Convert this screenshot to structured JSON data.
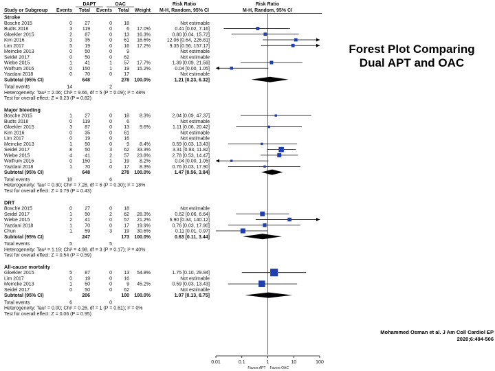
{
  "side_title": [
    "Forest Plot Comparing",
    "Dual APT and OAC"
  ],
  "citation": [
    "Mohammed Osman et al. J Am Coll Cardiol EP",
    "2020;6:494-506"
  ],
  "headers": {
    "group1": "DAPT",
    "group2": "OAC",
    "rr_col": "Risk Ratio",
    "rr_plot": "Risk Ratio",
    "study": "Study or Subgroup",
    "events": "Events",
    "total": "Total",
    "weight": "Weight",
    "method": "M-H, Random, 95% CI",
    "method_plot": "M-H, Random, 95% CI"
  },
  "footer": {
    "favors_left": "Favors APT",
    "favors_right": "Favors OAC"
  },
  "colors": {
    "square": "#1f3fae",
    "line": "#000000",
    "accent_text": "#000000"
  },
  "chart_data": {
    "type": "forest",
    "x_scale": "log",
    "xlim": [
      0.01,
      100
    ],
    "x_ticks": [
      "0.01",
      "0.1",
      "1",
      "10",
      "100"
    ],
    "null_line": 1,
    "subgroups": [
      {
        "title": "Stroke",
        "studies": [
          {
            "study": "Bosche 2015",
            "e1": "0",
            "t1": "27",
            "e2": "0",
            "t2": "18",
            "weight": "",
            "ci_text": "Not estimable",
            "rr": null,
            "lo": null,
            "hi": null
          },
          {
            "study": "Budts 2016",
            "e1": "3",
            "t1": "119",
            "e2": "0",
            "t2": "6",
            "weight": "17.0%",
            "ci_text": "0.41 [0.02, 7.16]",
            "rr": 0.41,
            "lo": 0.02,
            "hi": 7.16
          },
          {
            "study": "Gloekler 2015",
            "e1": "2",
            "t1": "87",
            "e2": "0",
            "t2": "13",
            "weight": "16.3%",
            "ci_text": "0.80 [0.04, 15.72]",
            "rr": 0.8,
            "lo": 0.04,
            "hi": 15.72
          },
          {
            "study": "Kim 2016",
            "e1": "3",
            "t1": "35",
            "e2": "0",
            "t2": "61",
            "weight": "16.6%",
            "ci_text": "12.06 [0.64, 226.81]",
            "rr": 12.06,
            "lo": 0.64,
            "hi": 226.81
          },
          {
            "study": "Lim 2017",
            "e1": "5",
            "t1": "19",
            "e2": "0",
            "t2": "16",
            "weight": "17.2%",
            "ci_text": "9.35 [0.56, 157.17]",
            "rr": 9.35,
            "lo": 0.56,
            "hi": 157.17
          },
          {
            "study": "Meincke 2013",
            "e1": "0",
            "t1": "50",
            "e2": "0",
            "t2": "9",
            "weight": "",
            "ci_text": "Not estimable",
            "rr": null,
            "lo": null,
            "hi": null
          },
          {
            "study": "Seidel 2017",
            "e1": "0",
            "t1": "50",
            "e2": "0",
            "t2": "62",
            "weight": "",
            "ci_text": "Not estimable",
            "rr": null,
            "lo": null,
            "hi": null
          },
          {
            "study": "Wiebe 2015",
            "e1": "1",
            "t1": "41",
            "e2": "1",
            "t2": "57",
            "weight": "17.7%",
            "ci_text": "1.39 [0.09, 21.59]",
            "rr": 1.39,
            "lo": 0.09,
            "hi": 21.59
          },
          {
            "study": "Wolfrum 2016",
            "e1": "0",
            "t1": "150",
            "e2": "1",
            "t2": "19",
            "weight": "15.2%",
            "ci_text": "0.04 [0.00, 1.05]",
            "rr": 0.04,
            "lo": 0.002,
            "hi": 1.05
          },
          {
            "study": "Yazdani 2018",
            "e1": "0",
            "t1": "70",
            "e2": "0",
            "t2": "17",
            "weight": "",
            "ci_text": "Not estimable",
            "rr": null,
            "lo": null,
            "hi": null
          }
        ],
        "subtotal": {
          "label": "Subtotal (95% CI)",
          "t1": "648",
          "t2": "278",
          "weight": "100.0%",
          "ci_text": "1.21 [0.23, 6.32]",
          "rr": 1.21,
          "lo": 0.23,
          "hi": 6.32
        },
        "total_events": {
          "label": "Total events",
          "e1": "14",
          "e2": "2"
        },
        "heterogeneity": "Heterogeneity: Tau² = 2.06; Chi² = 9.66, df = 5 (P = 0.09); I² = 48%",
        "overall": "Test for overall effect: Z = 0.23 (P = 0.82)"
      },
      {
        "title": "Major bleeding",
        "studies": [
          {
            "study": "Bosche 2015",
            "e1": "1",
            "t1": "27",
            "e2": "0",
            "t2": "18",
            "weight": "8.3%",
            "ci_text": "2.04 [0.09, 47.37]",
            "rr": 2.04,
            "lo": 0.09,
            "hi": 47.37
          },
          {
            "study": "Budts 2016",
            "e1": "0",
            "t1": "119",
            "e2": "0",
            "t2": "6",
            "weight": "",
            "ci_text": "Not estimable",
            "rr": null,
            "lo": null,
            "hi": null
          },
          {
            "study": "Gloekler 2015",
            "e1": "3",
            "t1": "87",
            "e2": "0",
            "t2": "13",
            "weight": "9.6%",
            "ci_text": "1.11 [0.06, 20.42]",
            "rr": 1.11,
            "lo": 0.06,
            "hi": 20.42
          },
          {
            "study": "Kim 2016",
            "e1": "0",
            "t1": "35",
            "e2": "0",
            "t2": "61",
            "weight": "",
            "ci_text": "Not estimable",
            "rr": null,
            "lo": null,
            "hi": null
          },
          {
            "study": "Lim 2017",
            "e1": "0",
            "t1": "19",
            "e2": "0",
            "t2": "16",
            "weight": "",
            "ci_text": "Not estimable",
            "rr": null,
            "lo": null,
            "hi": null
          },
          {
            "study": "Meincke 2013",
            "e1": "1",
            "t1": "50",
            "e2": "0",
            "t2": "9",
            "weight": "8.4%",
            "ci_text": "0.59 [0.03, 13.43]",
            "rr": 0.59,
            "lo": 0.03,
            "hi": 13.43
          },
          {
            "study": "Seidel 2017",
            "e1": "8",
            "t1": "50",
            "e2": "3",
            "t2": "62",
            "weight": "33.3%",
            "ci_text": "3.31 [0.93, 11.82]",
            "rr": 3.31,
            "lo": 0.93,
            "hi": 11.82
          },
          {
            "study": "Wiebe 2015",
            "e1": "4",
            "t1": "41",
            "e2": "2",
            "t2": "57",
            "weight": "23.8%",
            "ci_text": "2.78 [0.53, 14.47]",
            "rr": 2.78,
            "lo": 0.53,
            "hi": 14.47
          },
          {
            "study": "Wolfrum 2016",
            "e1": "0",
            "t1": "150",
            "e2": "1",
            "t2": "19",
            "weight": "8.2%",
            "ci_text": "0.04 [0.00, 1.05]",
            "rr": 0.04,
            "lo": 0.002,
            "hi": 1.05
          },
          {
            "study": "Yazdani 2018",
            "e1": "1",
            "t1": "70",
            "e2": "0",
            "t2": "17",
            "weight": "8.3%",
            "ci_text": "0.76 [0.03, 17.90]",
            "rr": 0.76,
            "lo": 0.03,
            "hi": 17.9
          }
        ],
        "subtotal": {
          "label": "Subtotal (95% CI)",
          "t1": "648",
          "t2": "278",
          "weight": "100.0%",
          "ci_text": "1.47 [0.56, 3.84]",
          "rr": 1.47,
          "lo": 0.56,
          "hi": 3.84
        },
        "total_events": {
          "label": "Total events",
          "e1": "18",
          "e2": "6"
        },
        "heterogeneity": "Heterogeneity: Tau² = 0.30; Chi² = 7.28, df = 6 (P = 0.30); I² = 18%",
        "overall": "Test for overall effect: Z = 0.79 (P = 0.43)"
      },
      {
        "title": "DRT",
        "studies": [
          {
            "study": "Bosche 2015",
            "e1": "0",
            "t1": "27",
            "e2": "0",
            "t2": "18",
            "weight": "",
            "ci_text": "Not estimable",
            "rr": null,
            "lo": null,
            "hi": null
          },
          {
            "study": "Seidel 2017",
            "e1": "1",
            "t1": "50",
            "e2": "2",
            "t2": "62",
            "weight": "28.3%",
            "ci_text": "0.62 [0.06, 6.64]",
            "rr": 0.62,
            "lo": 0.06,
            "hi": 6.64
          },
          {
            "study": "Wiebe 2015",
            "e1": "2",
            "t1": "41",
            "e2": "0",
            "t2": "57",
            "weight": "21.2%",
            "ci_text": "6.90 [0.34, 140.12]",
            "rr": 6.9,
            "lo": 0.34,
            "hi": 140.12
          },
          {
            "study": "Yazdani 2018",
            "e1": "1",
            "t1": "70",
            "e2": "0",
            "t2": "17",
            "weight": "19.9%",
            "ci_text": "0.76 [0.03, 17.90]",
            "rr": 0.76,
            "lo": 0.03,
            "hi": 17.9
          },
          {
            "study": "Chun",
            "e1": "1",
            "t1": "59",
            "e2": "3",
            "t2": "19",
            "weight": "30.6%",
            "ci_text": "0.11 [0.01, 0.97]",
            "rr": 0.11,
            "lo": 0.01,
            "hi": 0.97
          }
        ],
        "subtotal": {
          "label": "Subtotal (95% CI)",
          "t1": "247",
          "t2": "173",
          "weight": "100.0%",
          "ci_text": "0.63 [0.11, 3.44]",
          "rr": 0.63,
          "lo": 0.11,
          "hi": 3.44
        },
        "total_events": {
          "label": "Total events",
          "e1": "5",
          "e2": "5"
        },
        "heterogeneity": "Heterogeneity: Tau² = 1.19; Chi² = 4.98, df = 3 (P = 0.17); I² = 40%",
        "overall": "Test for overall effect: Z = 0.54 (P = 0.59)"
      },
      {
        "title": "All-cause mortality",
        "studies": [
          {
            "study": "Gloekler 2015",
            "e1": "5",
            "t1": "87",
            "e2": "0",
            "t2": "13",
            "weight": "54.8%",
            "ci_text": "1.75 [0.10, 29.94]",
            "rr": 1.75,
            "lo": 0.1,
            "hi": 29.94
          },
          {
            "study": "Lim 2017",
            "e1": "0",
            "t1": "19",
            "e2": "0",
            "t2": "16",
            "weight": "",
            "ci_text": "Not estimable",
            "rr": null,
            "lo": null,
            "hi": null
          },
          {
            "study": "Meincke 2013",
            "e1": "1",
            "t1": "50",
            "e2": "0",
            "t2": "9",
            "weight": "45.2%",
            "ci_text": "0.59 [0.03, 13.43]",
            "rr": 0.59,
            "lo": 0.03,
            "hi": 13.43
          },
          {
            "study": "Seidel 2017",
            "e1": "0",
            "t1": "50",
            "e2": "0",
            "t2": "62",
            "weight": "",
            "ci_text": "Not estimable",
            "rr": null,
            "lo": null,
            "hi": null
          }
        ],
        "subtotal": {
          "label": "Subtotal (95% CI)",
          "t1": "206",
          "t2": "100",
          "weight": "100.0%",
          "ci_text": "1.07 [0.13, 8.75]",
          "rr": 1.07,
          "lo": 0.13,
          "hi": 8.75
        },
        "total_events": {
          "label": "Total events",
          "e1": "6",
          "e2": "0"
        },
        "heterogeneity": "Heterogeneity: Tau² = 0.00; Chi² = 0.26, df = 1 (P = 0.61); I² = 0%",
        "overall": "Test for overall effect: Z = 0.06 (P = 0.95)"
      }
    ]
  }
}
